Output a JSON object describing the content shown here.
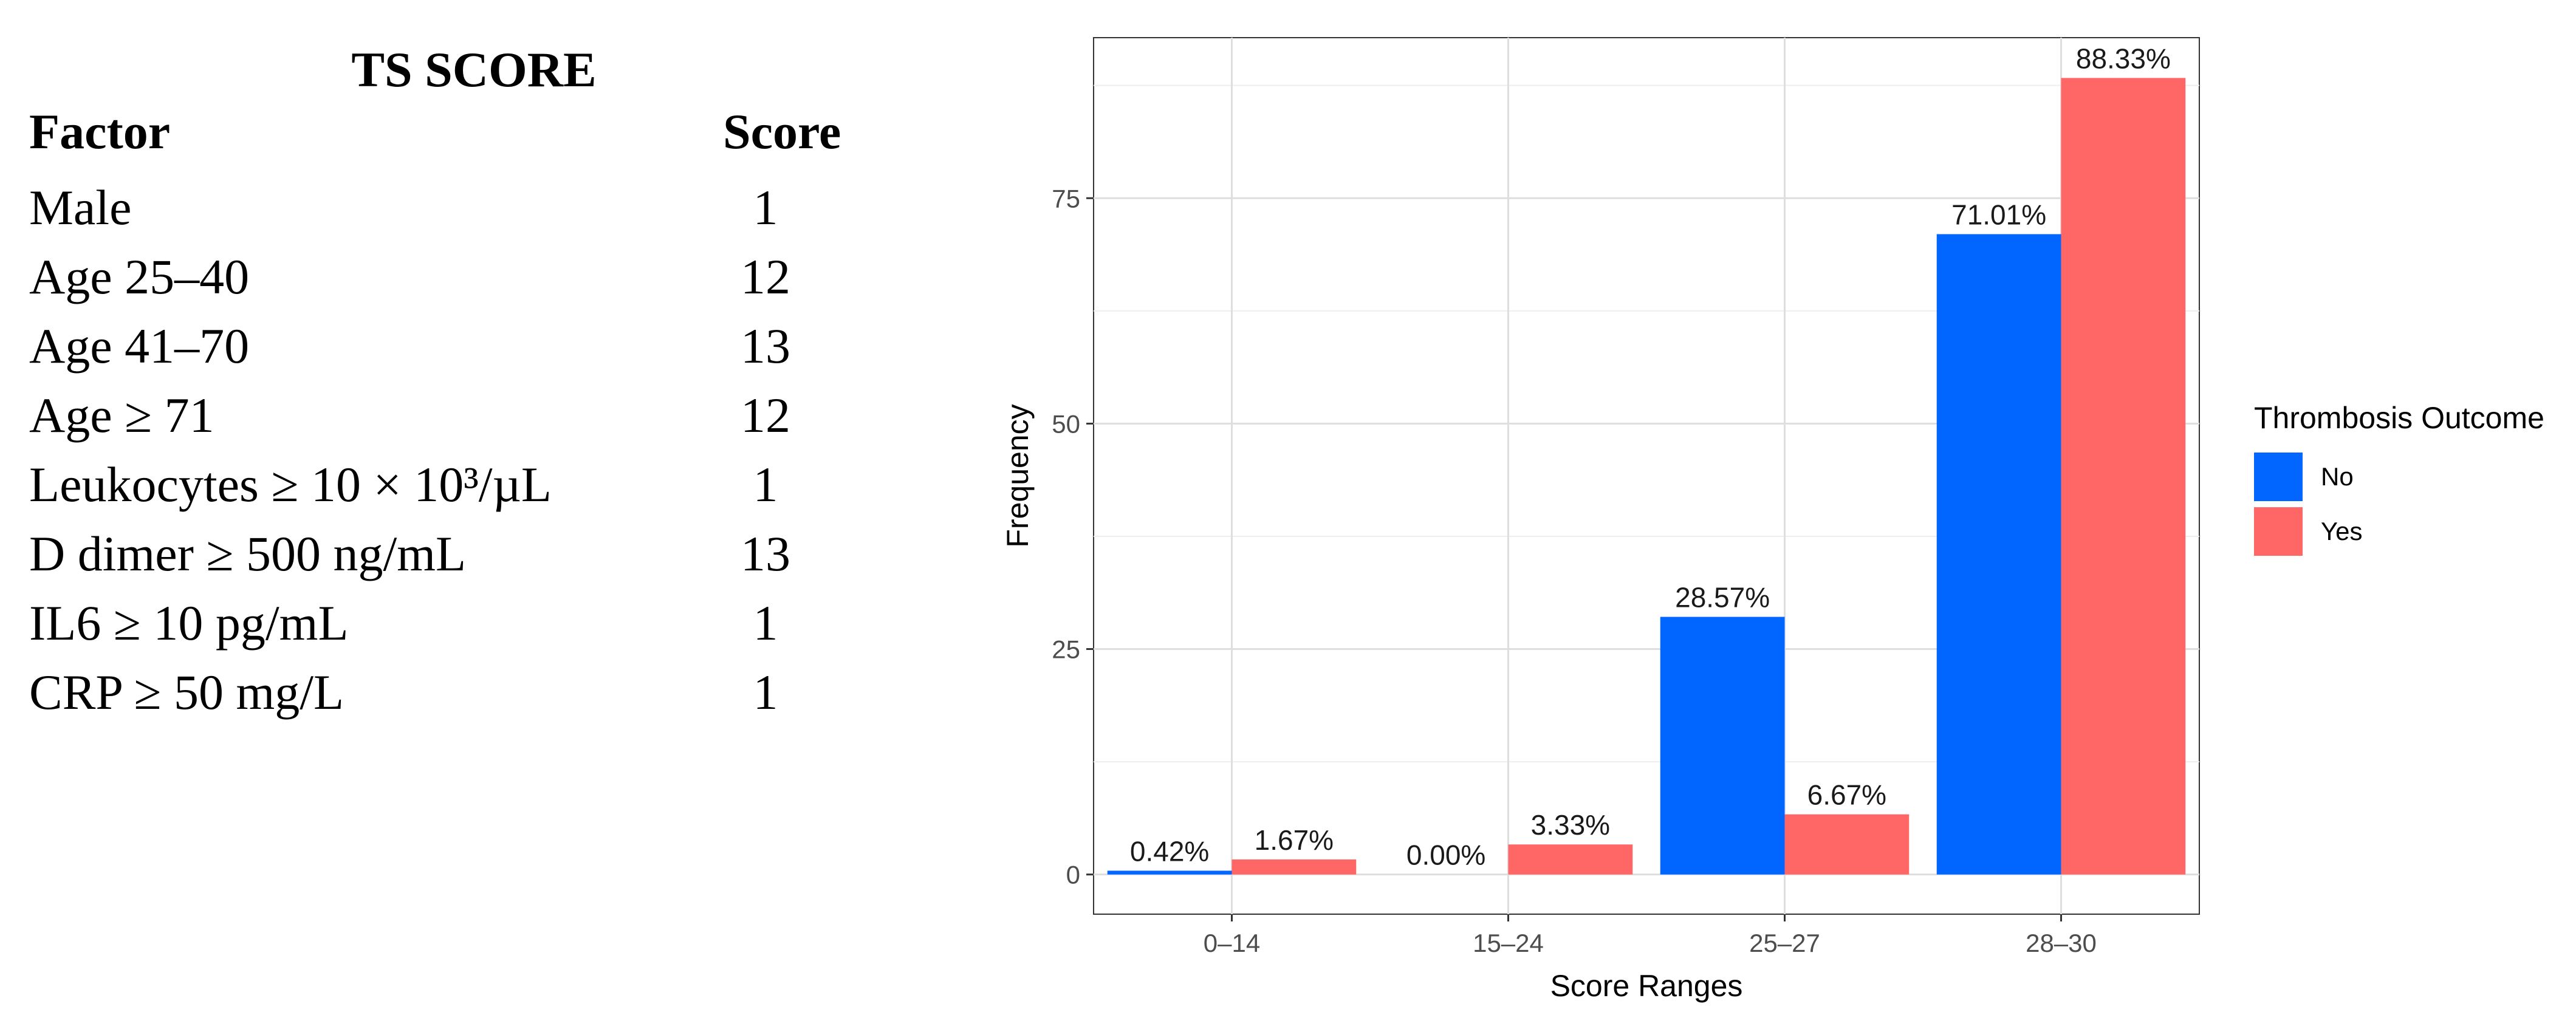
{
  "table": {
    "title": "TS SCORE",
    "headers": {
      "factor": "Factor",
      "score": "Score"
    },
    "rows": [
      {
        "factor": "Male",
        "score": "1"
      },
      {
        "factor": "Age 25–40",
        "score": "12"
      },
      {
        "factor": "Age 41–70",
        "score": "13"
      },
      {
        "factor": "Age ≥ 71",
        "score": "12"
      },
      {
        "factor": "Leukocytes ≥ 10 × 10³/µL",
        "score": "1"
      },
      {
        "factor": "D dimer ≥ 500 ng/mL",
        "score": "13"
      },
      {
        "factor": "IL6 ≥ 10 pg/mL",
        "score": "1"
      },
      {
        "factor": "CRP ≥ 50 mg/L",
        "score": "1"
      }
    ]
  },
  "chart_data": {
    "type": "bar",
    "categories": [
      "0–14",
      "15–24",
      "25–27",
      "28–30"
    ],
    "series": [
      {
        "name": "No",
        "color": "#0066ff",
        "values": [
          0.42,
          0.0,
          28.57,
          71.01
        ],
        "labels": [
          "0.42%",
          "0.00%",
          "28.57%",
          "71.01%"
        ]
      },
      {
        "name": "Yes",
        "color": "#ff6666",
        "values": [
          1.67,
          3.33,
          6.67,
          88.33
        ],
        "labels": [
          "1.67%",
          "3.33%",
          "6.67%",
          "88.33%"
        ]
      }
    ],
    "xlabel": "Score Ranges",
    "ylabel": "Frequency",
    "ylim": [
      -4.4,
      92.8
    ],
    "yticks": [
      0,
      25,
      50,
      75
    ],
    "legend_title": "Thrombosis Outcome",
    "legend_position": "right",
    "grid": true
  }
}
